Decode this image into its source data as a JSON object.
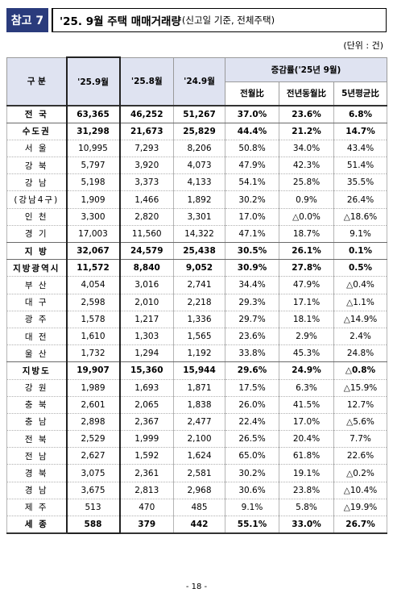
{
  "tag": "참고 7",
  "title_main": "'25. 9월 주택 매매거래량",
  "title_sub": "(신고일 기준, 전체주택)",
  "unit": "(단위 : 건)",
  "header": {
    "region": "구 분",
    "col1": "'25.9월",
    "col2": "'25.8월",
    "col3": "'24.9월",
    "rate_group": "증감률('25년 9월)",
    "mom": "전월比",
    "yoy": "전년동월比",
    "avg5": "5년평균比"
  },
  "rows": [
    [
      "전 국",
      "63,365",
      "46,252",
      "51,267",
      "37.0%",
      "23.6%",
      "6.8%"
    ],
    [
      "수도권",
      "31,298",
      "21,673",
      "25,829",
      "44.4%",
      "21.2%",
      "14.7%"
    ],
    [
      "서 울",
      "10,995",
      "7,293",
      "8,206",
      "50.8%",
      "34.0%",
      "43.4%"
    ],
    [
      "강 북",
      "5,797",
      "3,920",
      "4,073",
      "47.9%",
      "42.3%",
      "51.4%"
    ],
    [
      "강 남",
      "5,198",
      "3,373",
      "4,133",
      "54.1%",
      "25.8%",
      "35.5%"
    ],
    [
      "(강남4구)",
      "1,909",
      "1,466",
      "1,892",
      "30.2%",
      "0.9%",
      "26.4%"
    ],
    [
      "인 천",
      "3,300",
      "2,820",
      "3,301",
      "17.0%",
      "△0.0%",
      "△18.6%"
    ],
    [
      "경 기",
      "17,003",
      "11,560",
      "14,322",
      "47.1%",
      "18.7%",
      "9.1%"
    ],
    [
      "지 방",
      "32,067",
      "24,579",
      "25,438",
      "30.5%",
      "26.1%",
      "0.1%"
    ],
    [
      "지방광역시",
      "11,572",
      "8,840",
      "9,052",
      "30.9%",
      "27.8%",
      "0.5%"
    ],
    [
      "부 산",
      "4,054",
      "3,016",
      "2,741",
      "34.4%",
      "47.9%",
      "△0.4%"
    ],
    [
      "대 구",
      "2,598",
      "2,010",
      "2,218",
      "29.3%",
      "17.1%",
      "△1.1%"
    ],
    [
      "광 주",
      "1,578",
      "1,217",
      "1,336",
      "29.7%",
      "18.1%",
      "△14.9%"
    ],
    [
      "대 전",
      "1,610",
      "1,303",
      "1,565",
      "23.6%",
      "2.9%",
      "2.4%"
    ],
    [
      "울 산",
      "1,732",
      "1,294",
      "1,192",
      "33.8%",
      "45.3%",
      "24.8%"
    ],
    [
      "지방도",
      "19,907",
      "15,360",
      "15,944",
      "29.6%",
      "24.9%",
      "△0.8%"
    ],
    [
      "강 원",
      "1,989",
      "1,693",
      "1,871",
      "17.5%",
      "6.3%",
      "△15.9%"
    ],
    [
      "충 북",
      "2,601",
      "2,065",
      "1,838",
      "26.0%",
      "41.5%",
      "12.7%"
    ],
    [
      "충 남",
      "2,898",
      "2,367",
      "2,477",
      "22.4%",
      "17.0%",
      "△5.6%"
    ],
    [
      "전 북",
      "2,529",
      "1,999",
      "2,100",
      "26.5%",
      "20.4%",
      "7.7%"
    ],
    [
      "전 남",
      "2,627",
      "1,592",
      "1,624",
      "65.0%",
      "61.8%",
      "22.6%"
    ],
    [
      "경 북",
      "3,075",
      "2,361",
      "2,581",
      "30.2%",
      "19.1%",
      "△0.2%"
    ],
    [
      "경 남",
      "3,675",
      "2,813",
      "2,968",
      "30.6%",
      "23.8%",
      "△10.4%"
    ],
    [
      "제 주",
      "513",
      "470",
      "485",
      "9.1%",
      "5.8%",
      "△19.9%"
    ],
    [
      "세 종",
      "588",
      "379",
      "442",
      "55.1%",
      "33.0%",
      "26.7%"
    ]
  ],
  "page_number": "- 18 -"
}
